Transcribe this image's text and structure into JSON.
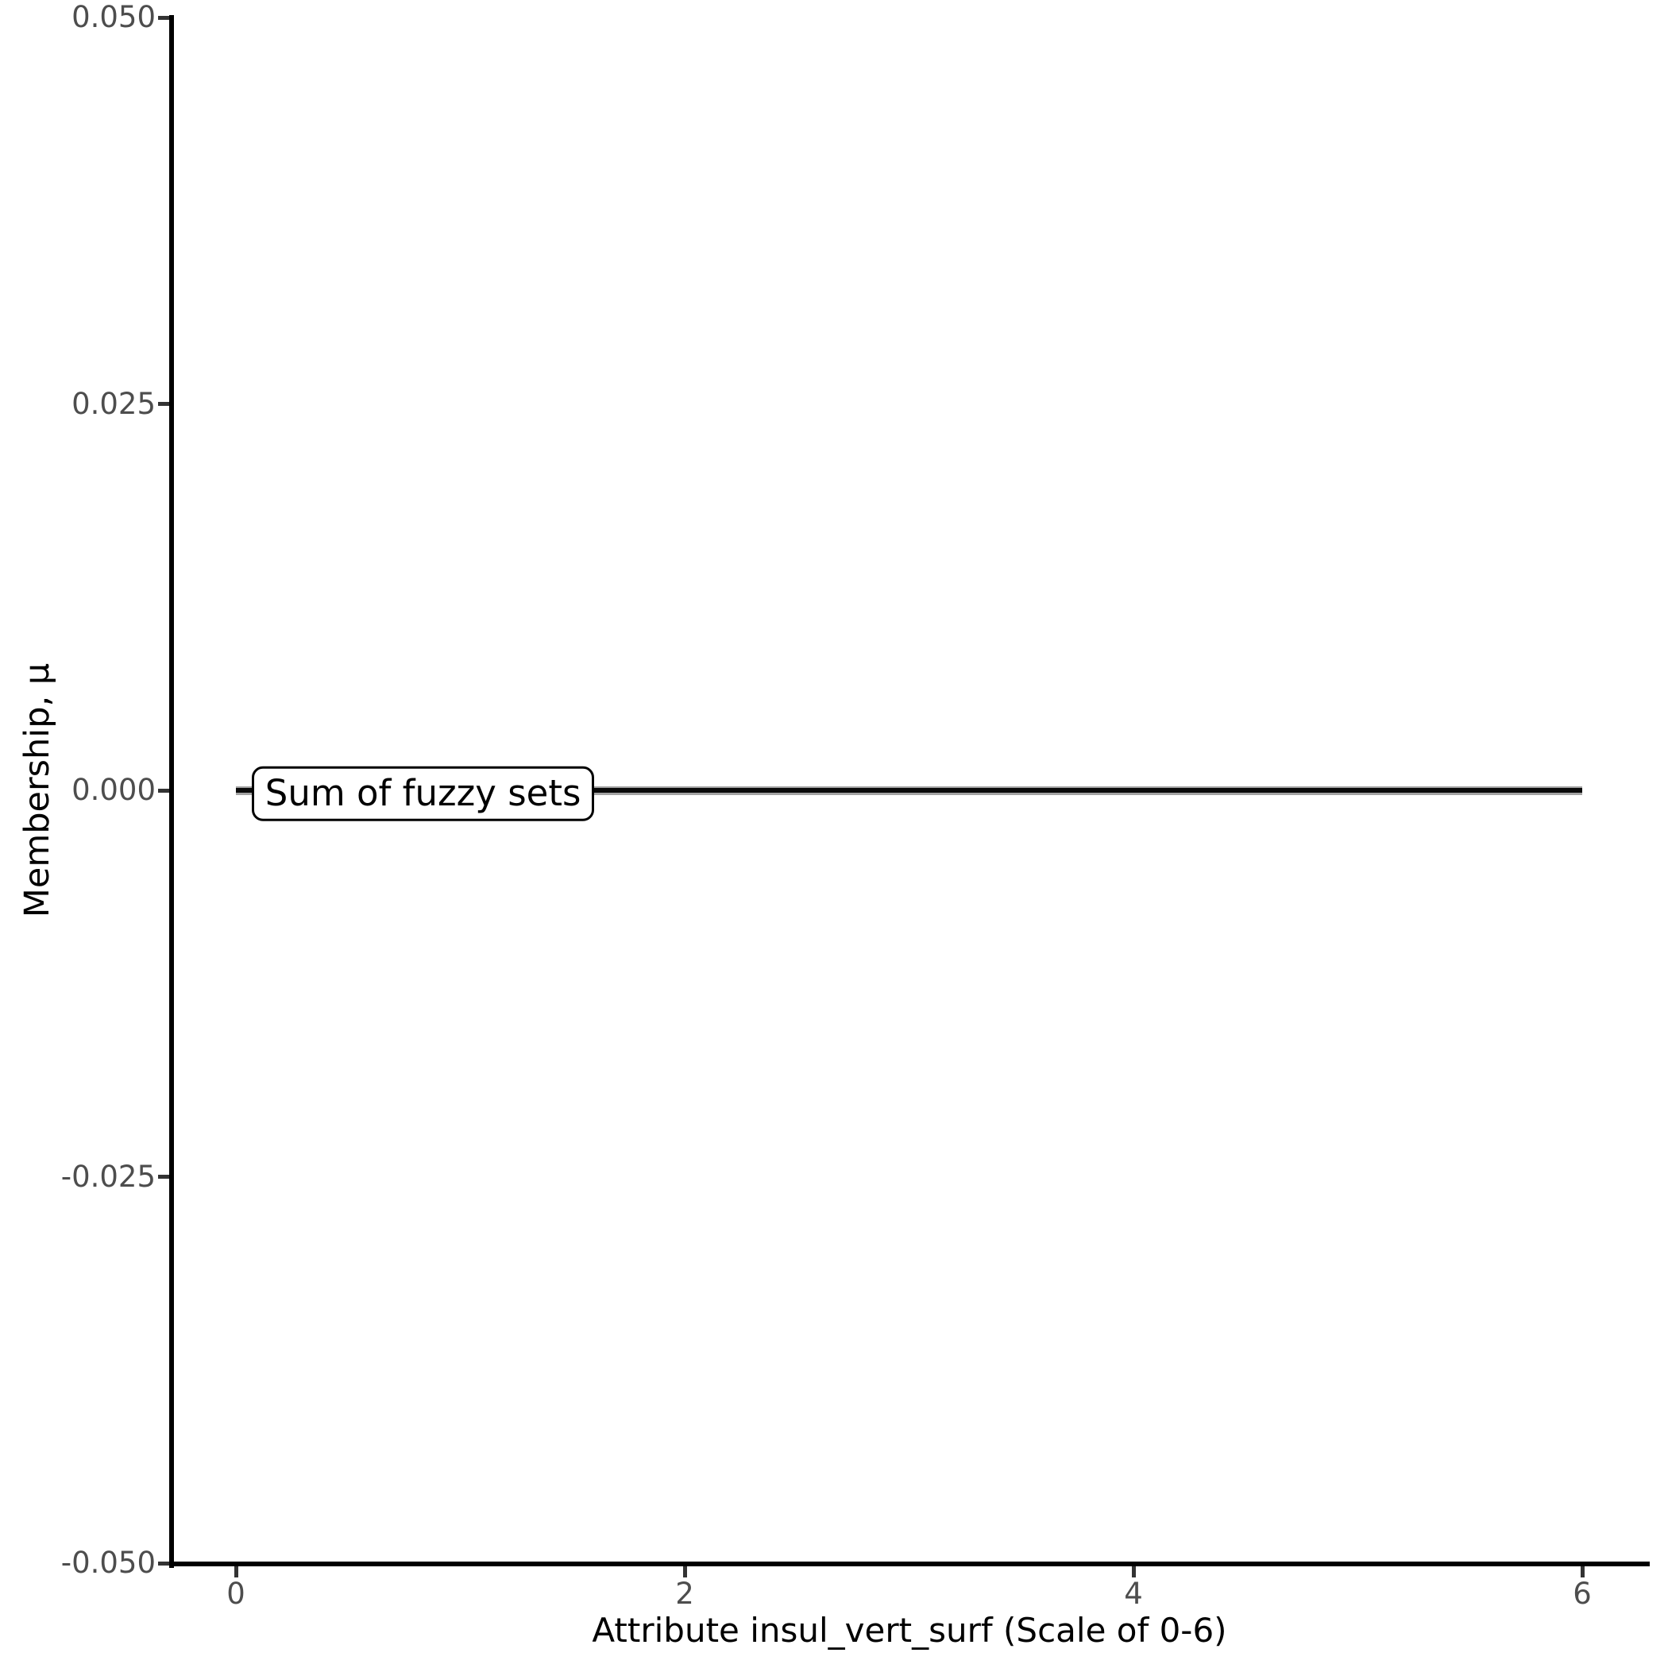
{
  "figure": {
    "background": "#FFFFFF"
  },
  "chart_data": {
    "type": "line",
    "title": "",
    "xlabel": "Attribute insul_vert_surf (Scale of 0-6)",
    "ylabel": "Membership, μ",
    "xlim": [
      0,
      6
    ],
    "ylim": [
      -0.05,
      0.05
    ],
    "grid": false,
    "legend_position": "none",
    "x_axis": {
      "tick_values": [
        0,
        2,
        4,
        6
      ],
      "tick_labels": [
        "0",
        "2",
        "4",
        "6"
      ]
    },
    "y_axis": {
      "tick_values": [
        0.05,
        0.025,
        0,
        -0.025,
        -0.05
      ],
      "tick_labels": [
        "0.050",
        "0.025",
        "0.000",
        "-0.025",
        "-0.050"
      ]
    },
    "series": [
      {
        "name": "fuzzy-sets-underlay",
        "color": "#A3A3A3",
        "stroke_px": 11,
        "x": [
          0,
          6
        ],
        "y": [
          0,
          0
        ]
      },
      {
        "name": "Sum of fuzzy sets",
        "color": "#0A0A0A",
        "stroke_px": 6,
        "x": [
          0,
          6
        ],
        "y": [
          0,
          0
        ]
      }
    ],
    "annotation": {
      "text": "Sum of fuzzy sets",
      "x_data": 0.07,
      "y_data": 0,
      "style": "rounded-white-box"
    }
  },
  "colors": {
    "axis_line": "#000000",
    "tick_mark": "#333333",
    "tick_label": "#4D4D4D",
    "axis_title": "#000000",
    "line_underlay": "#A3A3A3",
    "line_main": "#0A0A0A",
    "annotation_border": "#000000",
    "annotation_background": "#FFFFFF",
    "annotation_text": "#000000"
  }
}
